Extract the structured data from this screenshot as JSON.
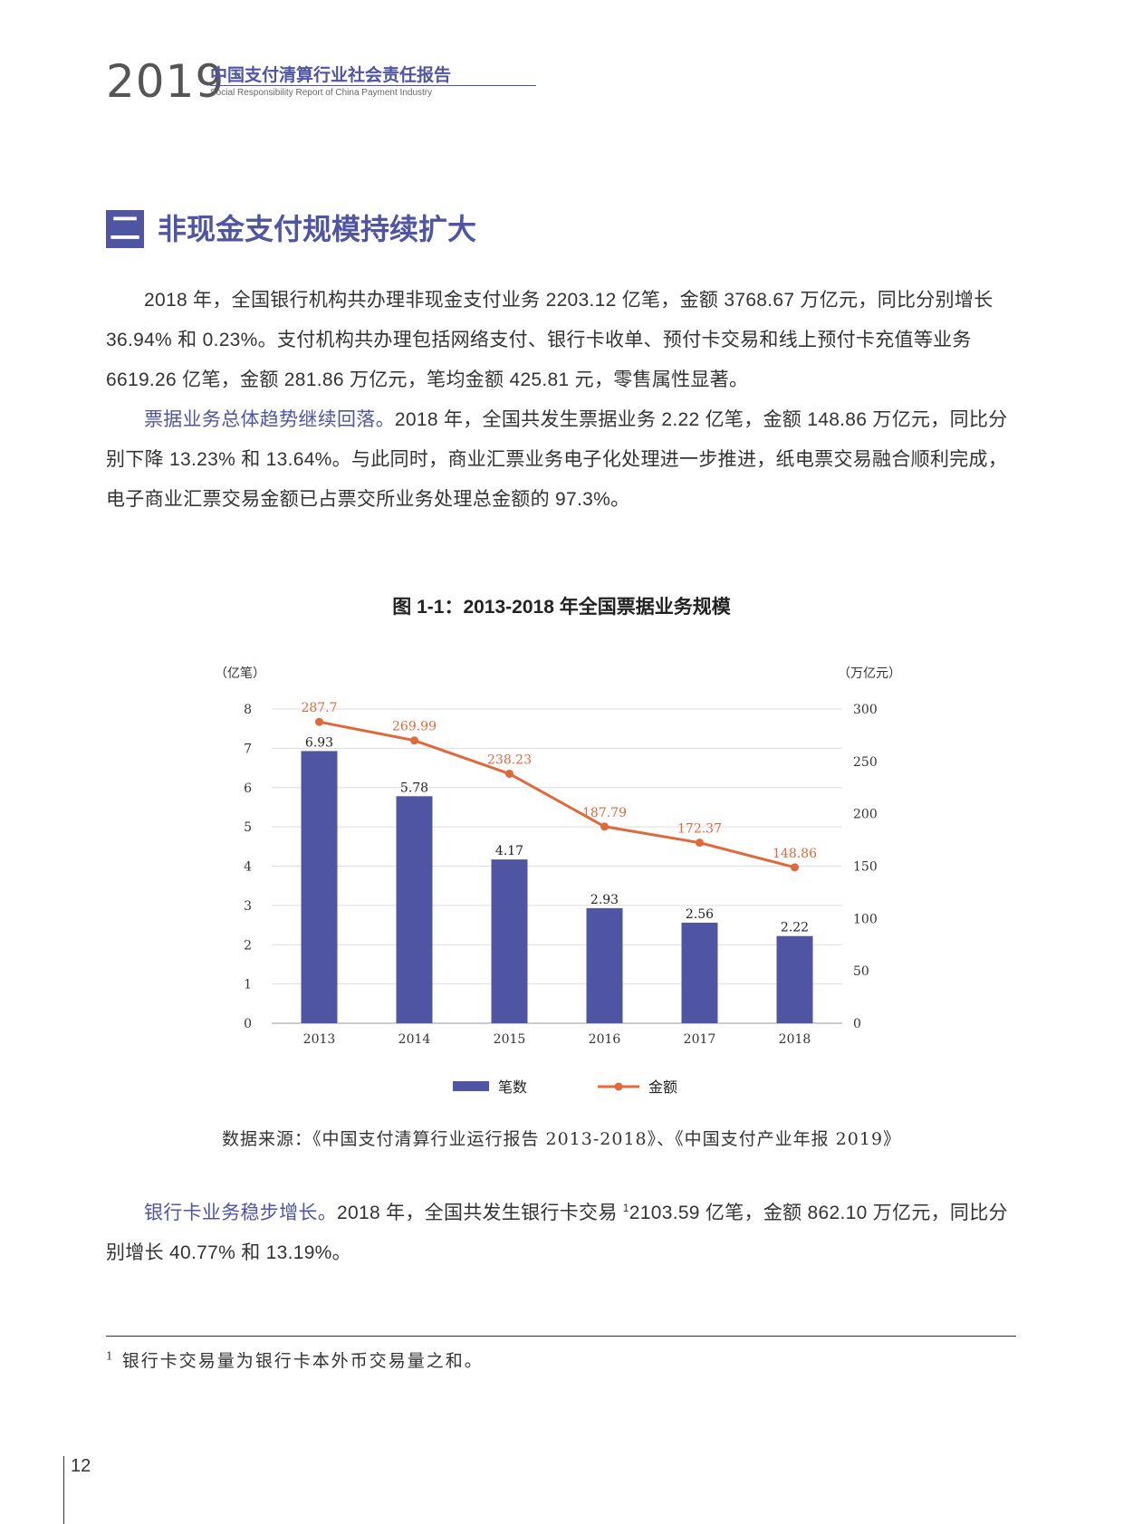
{
  "header": {
    "year": "2019",
    "title_cn": "中国支付清算行业社会责任报告",
    "title_en": "Social Responsibility Report of China Payment Industry"
  },
  "section": {
    "number": "二",
    "title": "非现金支付规模持续扩大"
  },
  "paragraphs": {
    "p1": "2018 年，全国银行机构共办理非现金支付业务 2203.12 亿笔，金额 3768.67 万亿元，同比分别增长 36.94% 和 0.23%。支付机构共办理包括网络支付、银行卡收单、预付卡交易和线上预付卡充值等业务 6619.26 亿笔，金额 281.86 万亿元，笔均金额 425.81 元，零售属性显著。",
    "p2_lead": "票据业务总体趋势继续回落。",
    "p2_body": "2018 年，全国共发生票据业务 2.22 亿笔，金额 148.86 万亿元，同比分别下降 13.23% 和 13.64%。与此同时，商业汇票业务电子化处理进一步推进，纸电票交易融合顺利完成，电子商业汇票交易金额已占票交所业务处理总金额的 97.3%。",
    "p3_lead": "银行卡业务稳步增长。",
    "p3_body_a": "2018 年，全国共发生银行卡交易 ",
    "p3_sup": "1",
    "p3_body_b": "2103.59 亿笔，金额 862.10 万亿元，同比分别增长 40.77% 和 13.19%。"
  },
  "figure": {
    "title": "图 1-1：2013-2018 年全国票据业务规模",
    "source": "数据来源：《中国支付清算行业运行报告 2013-2018》、《中国支付产业年报 2019》"
  },
  "chart_data": {
    "type": "bar",
    "title": "图 1-1：2013-2018 年全国票据业务规模",
    "categories": [
      "2013",
      "2014",
      "2015",
      "2016",
      "2017",
      "2018"
    ],
    "series": [
      {
        "name": "笔数",
        "type": "bar",
        "axis": "left",
        "values": [
          6.93,
          5.78,
          4.17,
          2.93,
          2.56,
          2.22
        ],
        "color": "#4f55a3"
      },
      {
        "name": "金额",
        "type": "line",
        "axis": "right",
        "values": [
          287.7,
          269.99,
          238.23,
          187.79,
          172.37,
          148.86
        ],
        "color": "#e0683a"
      }
    ],
    "y_left": {
      "label": "（亿笔）",
      "range": [
        0,
        8
      ],
      "ticks": [
        "0",
        "1",
        "2",
        "3",
        "4",
        "5",
        "6",
        "7",
        "8"
      ]
    },
    "y_right": {
      "label": "（万亿元）",
      "range": [
        0,
        300
      ],
      "ticks": [
        "0",
        "50",
        "100",
        "150",
        "200",
        "250",
        "300"
      ]
    },
    "bar_labels": [
      "6.93",
      "5.78",
      "4.17",
      "2.93",
      "2.56",
      "2.22"
    ],
    "line_labels": [
      "287.7",
      "269.99",
      "238.23",
      "187.79",
      "172.37",
      "148.86"
    ],
    "legend": {
      "position": "bottom",
      "items": [
        "笔数",
        "金额"
      ]
    },
    "grid": true
  },
  "footnote": {
    "mark": "1",
    "text": "银行卡交易量为银行卡本外币交易量之和。"
  },
  "page_number": "12"
}
